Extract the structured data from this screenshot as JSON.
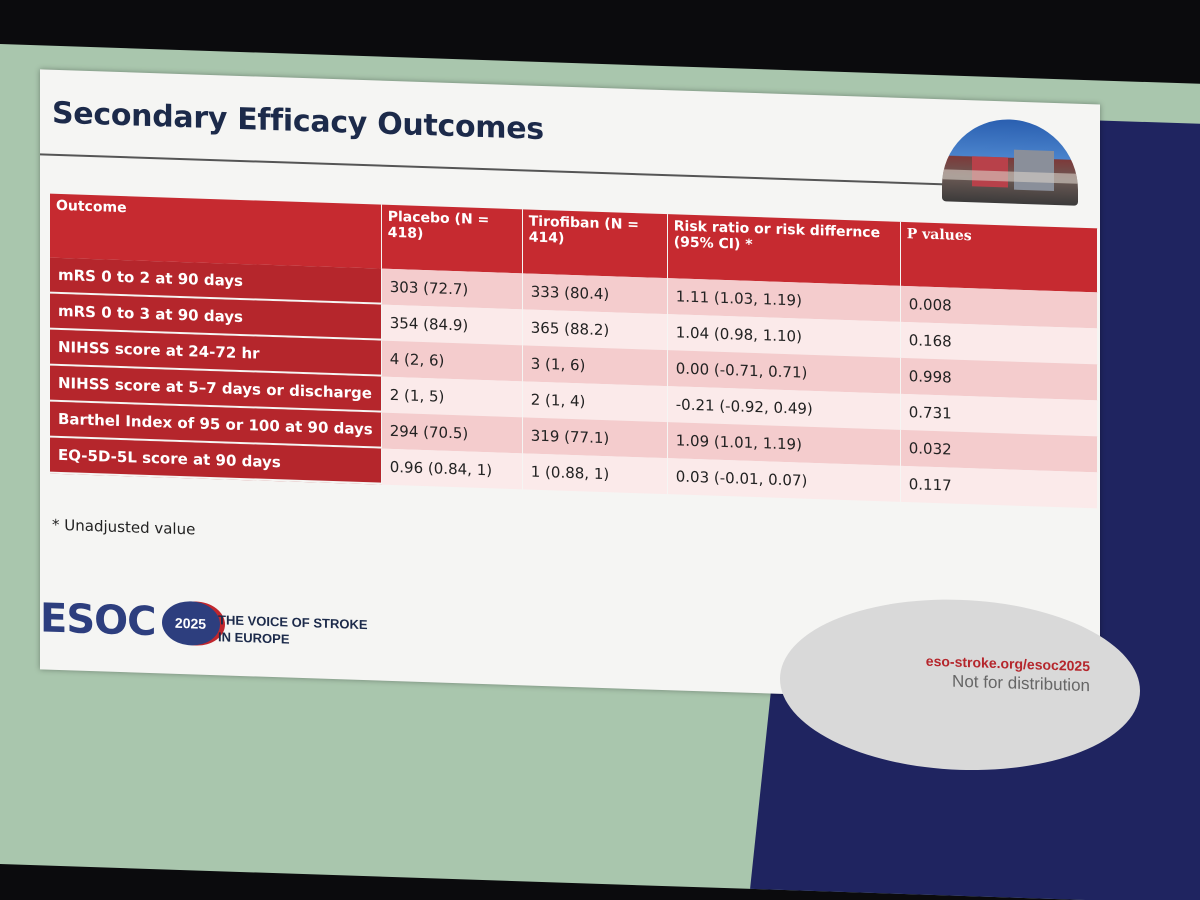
{
  "slide": {
    "title": "Secondary Efficacy Outcomes",
    "footnote": "* Unadjusted value"
  },
  "table": {
    "headers": [
      "Outcome",
      "Placebo (N = 418)",
      "Tirofiban (N = 414)",
      "Risk ratio or risk differnce (95% CI) *",
      "P values"
    ],
    "rows": [
      [
        "mRS 0 to 2 at 90 days",
        "303 (72.7)",
        "333 (80.4)",
        "1.11 (1.03, 1.19)",
        "0.008"
      ],
      [
        "mRS 0 to 3 at 90 days",
        "354 (84.9)",
        "365 (88.2)",
        "1.04 (0.98, 1.10)",
        "0.168"
      ],
      [
        "NIHSS score at 24-72 hr",
        "4 (2, 6)",
        "3 (1, 6)",
        "0.00 (-0.71, 0.71)",
        "0.998"
      ],
      [
        "NIHSS score at 5–7 days or discharge",
        "2 (1, 5)",
        "2 (1, 4)",
        "-0.21 (-0.92, 0.49)",
        "0.731"
      ],
      [
        "Barthel Index of 95 or 100 at 90 days",
        "294 (70.5)",
        "319 (77.1)",
        "1.09 (1.01, 1.19)",
        "0.032"
      ],
      [
        "EQ-5D-5L score at 90 days",
        "0.96 (0.84, 1)",
        "1 (0.88, 1)",
        "0.03 (-0.01, 0.07)",
        "0.117"
      ]
    ]
  },
  "footer": {
    "logo_text": "ESOC",
    "logo_year": "2025",
    "tagline_line1": "THE VOICE OF STROKE",
    "tagline_line2": "IN EUROPE",
    "url": "eso-stroke.org/esoc2025",
    "note": "Not for distribution"
  },
  "colors": {
    "header_red": "#c62a30",
    "row_dark": "#f4cccd",
    "row_light": "#fbeaea",
    "title_navy": "#1c2a4a"
  }
}
